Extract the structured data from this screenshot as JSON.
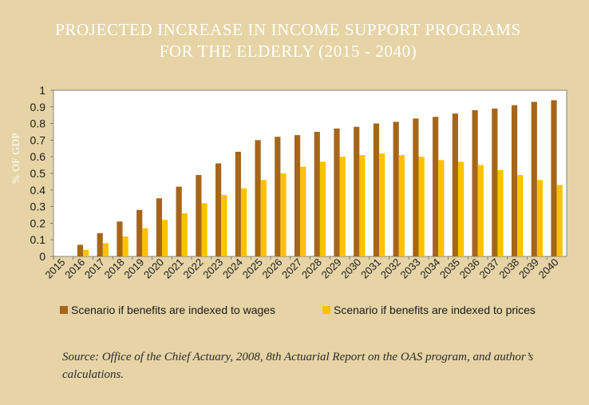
{
  "title_lines": [
    "PROJECTED INCREASE IN INCOME SUPPORT PROGRAMS",
    "FOR THE ELDERLY (2015 - 2040)"
  ],
  "source_note": "Source: Office of the Chief Actuary, 2008, 8th Actuarial Report on the OAS program, and author’s calculations.",
  "chart_data": {
    "type": "bar",
    "ylabel": "% OF GDP",
    "ylim": [
      0,
      1
    ],
    "yticks": [
      "0",
      "0.1",
      "0.2",
      "0.3",
      "0.4",
      "0.5",
      "0.6",
      "0.7",
      "0.8",
      "0.9",
      "1"
    ],
    "grid": false,
    "legend_position": "bottom",
    "categories": [
      "2015",
      "2016",
      "2017",
      "2018",
      "2019",
      "2020",
      "2021",
      "2022",
      "2023",
      "2024",
      "2025",
      "2026",
      "2027",
      "2028",
      "2029",
      "2030",
      "2031",
      "2032",
      "2033",
      "2034",
      "2035",
      "2036",
      "2037",
      "2038",
      "2039",
      "2040"
    ],
    "series": [
      {
        "name": "Scenario if benefits are indexed to wages",
        "color": "#a6661a",
        "values": [
          0,
          0.07,
          0.14,
          0.21,
          0.28,
          0.35,
          0.42,
          0.49,
          0.56,
          0.63,
          0.7,
          0.72,
          0.73,
          0.75,
          0.77,
          0.78,
          0.8,
          0.81,
          0.83,
          0.84,
          0.86,
          0.88,
          0.89,
          0.91,
          0.93,
          0.94
        ]
      },
      {
        "name": "Scenario if benefits are indexed to prices",
        "color": "#fcc200",
        "values": [
          0,
          0.04,
          0.08,
          0.12,
          0.17,
          0.22,
          0.26,
          0.32,
          0.37,
          0.41,
          0.46,
          0.5,
          0.54,
          0.57,
          0.6,
          0.61,
          0.62,
          0.61,
          0.6,
          0.58,
          0.57,
          0.55,
          0.52,
          0.49,
          0.46,
          0.43
        ]
      }
    ]
  }
}
